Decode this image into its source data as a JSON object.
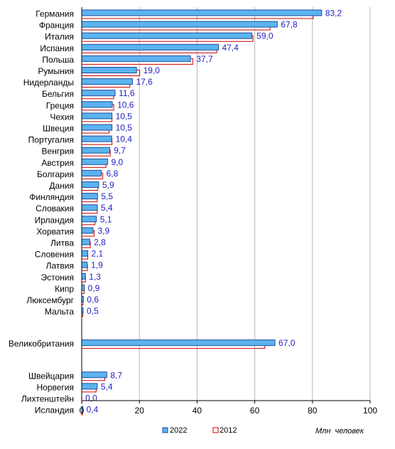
{
  "chart_data": {
    "type": "bar",
    "orientation": "horizontal",
    "categories": [
      "Германия",
      "Франция",
      "Италия",
      "Испания",
      "Польша",
      "Румыния",
      "Нидерланды",
      "Бельгия",
      "Греция",
      "Чехия",
      "Швеция",
      "Португалия",
      "Венгрия",
      "Австрия",
      "Болгария",
      "Дания",
      "Финляндия",
      "Словакия",
      "Ирландия",
      "Хорватия",
      "Литва",
      "Словения",
      "Латвия",
      "Эстония",
      "Кипр",
      "Люксембург",
      "Мальта",
      "Великобритания",
      "Швейцария",
      "Норвегия",
      "Лихтенштейн",
      "Исландия"
    ],
    "series": [
      {
        "name": "2022",
        "values": [
          83.2,
          67.8,
          59.0,
          47.4,
          37.7,
          19.0,
          17.6,
          11.6,
          10.6,
          10.5,
          10.5,
          10.4,
          9.7,
          9.0,
          6.8,
          5.9,
          5.5,
          5.4,
          5.1,
          3.9,
          2.8,
          2.1,
          1.9,
          1.3,
          0.9,
          0.6,
          0.5,
          67.0,
          8.7,
          5.4,
          0.0,
          0.4
        ]
      },
      {
        "name": "2012",
        "values": [
          80.3,
          65.3,
          59.4,
          46.8,
          38.5,
          20.1,
          16.7,
          11.1,
          11.1,
          10.5,
          9.5,
          10.5,
          9.9,
          8.4,
          7.3,
          5.6,
          5.4,
          5.4,
          4.6,
          4.3,
          3.0,
          2.1,
          2.0,
          1.3,
          0.9,
          0.5,
          0.4,
          63.5,
          8.0,
          5.0,
          0.04,
          0.3
        ]
      }
    ],
    "value_labels": [
      "83,2",
      "67,8",
      "59,0",
      "47,4",
      "37,7",
      "19,0",
      "17,6",
      "11,6",
      "10,6",
      "10,5",
      "10,5",
      "10,4",
      "9,7",
      "9,0",
      "6,8",
      "5,9",
      "5,5",
      "5,4",
      "5,1",
      "3,9",
      "2,8",
      "2,1",
      "1,9",
      "1,3",
      "0,9",
      "0,6",
      "0,5",
      "67,0",
      "8,7",
      "5,4",
      "0,0",
      "0,4"
    ],
    "group_breaks_after": [
      26,
      27
    ],
    "xlim": [
      0,
      100
    ],
    "xticks": [
      0,
      20,
      40,
      60,
      80,
      100
    ],
    "grid": true,
    "legend_position": "bottom",
    "unit_label": "Млн  человек",
    "colors": {
      "2022": "#5cb3ef",
      "2022_edge": "#1f4e9c",
      "2012": "#cc0000",
      "grid": "#b8b8b8",
      "value_text": "#1f1fbf"
    }
  }
}
